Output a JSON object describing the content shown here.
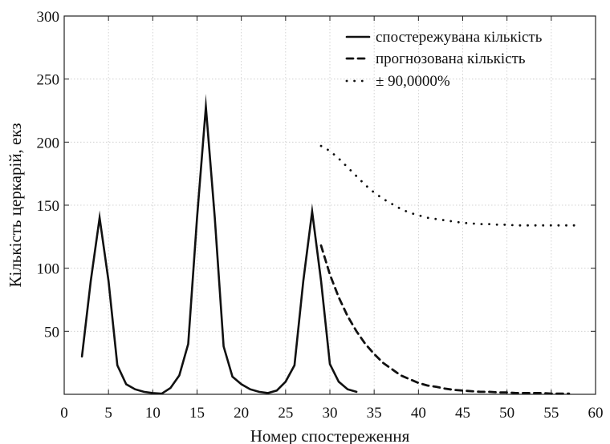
{
  "chart_data": {
    "type": "line",
    "title": "",
    "xlabel": "Номер спостереження",
    "ylabel": "Кількість церкарій, екз",
    "xlim": [
      0,
      60
    ],
    "ylim": [
      0,
      300
    ],
    "x_ticks": [
      0,
      5,
      10,
      15,
      20,
      25,
      30,
      35,
      40,
      45,
      50,
      55,
      60
    ],
    "y_ticks": [
      50,
      100,
      150,
      200,
      250,
      300
    ],
    "grid": true,
    "legend_position": "top-right",
    "series": [
      {
        "name": "спостережувана кількість",
        "style": "solid",
        "color": "#111111",
        "x": [
          2,
          3,
          4,
          5,
          6,
          7,
          8,
          9,
          10,
          11,
          12,
          13,
          14,
          15,
          16,
          17,
          18,
          19,
          20,
          21,
          22,
          23,
          24,
          25,
          26,
          27,
          28,
          29,
          30,
          31,
          32,
          33
        ],
        "y": [
          30,
          90,
          140,
          90,
          23,
          8,
          4,
          2,
          1,
          0.5,
          5,
          15,
          40,
          140,
          228,
          140,
          38,
          14,
          8,
          4,
          2,
          1,
          3,
          10,
          23,
          90,
          145,
          90,
          24,
          10,
          4,
          2
        ]
      },
      {
        "name": "прогнозована кількість",
        "style": "dashed",
        "color": "#111111",
        "x": [
          29,
          30,
          31,
          32,
          33,
          34,
          35,
          36,
          37,
          38,
          39,
          40,
          41,
          42,
          43,
          44,
          45,
          46,
          47,
          48,
          49,
          50,
          51,
          52,
          53,
          54,
          55,
          56,
          57
        ],
        "y": [
          118,
          95,
          77,
          62,
          50,
          40,
          32,
          25,
          20,
          15,
          12,
          9,
          7,
          6,
          4.5,
          3.5,
          3,
          2.5,
          2,
          2,
          1.5,
          1.5,
          1,
          1,
          1,
          1,
          0.5,
          0.5,
          0.5
        ]
      },
      {
        "name": "± 90,0000%",
        "style": "dotted",
        "color": "#111111",
        "x": [
          29,
          30,
          31,
          32,
          33,
          34,
          35,
          36,
          37,
          38,
          39,
          40,
          41,
          42,
          43,
          44,
          45,
          46,
          47,
          48,
          49,
          50,
          51,
          52,
          53,
          54,
          55,
          56,
          57,
          58
        ],
        "y": [
          197,
          193,
          187,
          180,
          173,
          166,
          160,
          155,
          151,
          147,
          144,
          142,
          140,
          139,
          138,
          137,
          136,
          135.5,
          135,
          135,
          134.5,
          134.5,
          134,
          134,
          134,
          134,
          134,
          134,
          134,
          134
        ]
      }
    ]
  }
}
